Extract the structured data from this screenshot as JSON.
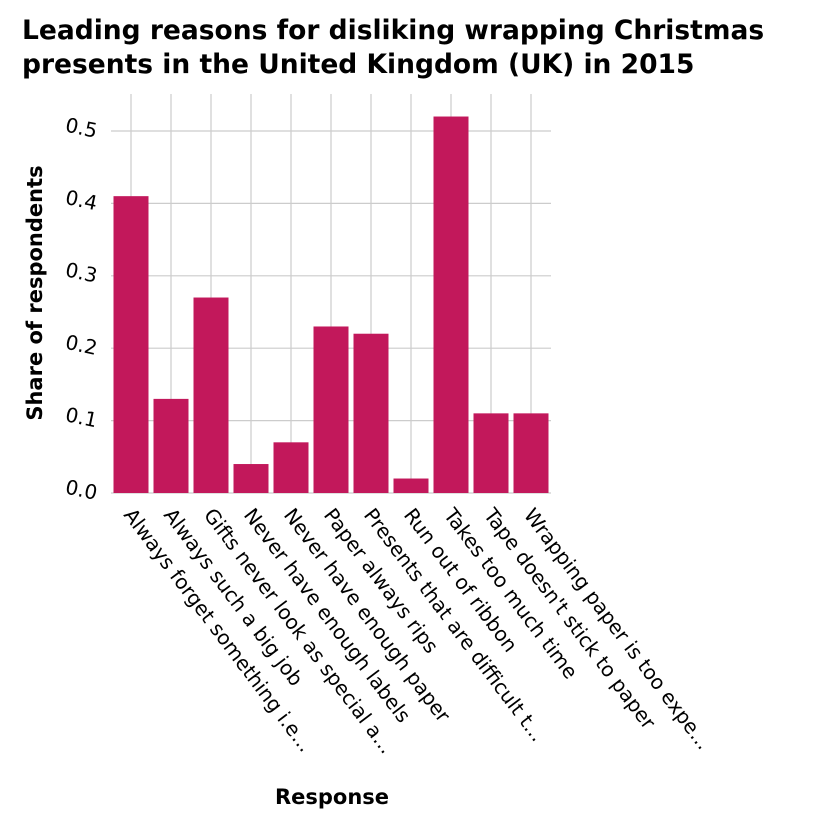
{
  "chart_data": {
    "type": "bar",
    "title": [
      "Leading reasons for disliking wrapping Christmas",
      "presents in the United Kingdom (UK) in 2015"
    ],
    "xlabel": "Response",
    "ylabel": "Share of respondents",
    "categories": [
      "Always forget something i.e...",
      "Always such a big job",
      "Gifts never look as special a...",
      "Never have enough labels",
      "Never have enough paper",
      "Paper always rips",
      "Presents that are difficult t...",
      "Run out of ribbon",
      "Takes too much time",
      "Tape doesn't stick to paper",
      "Wrapping paper is too expe..."
    ],
    "values": [
      0.41,
      0.13,
      0.27,
      0.04,
      0.07,
      0.23,
      0.22,
      0.02,
      0.52,
      0.11,
      0.11
    ],
    "yticks": [
      "0.0",
      "0.1",
      "0.2",
      "0.3",
      "0.4",
      "0.5"
    ],
    "ylim": [
      0,
      0.55
    ],
    "grid": true,
    "legend": "none",
    "colors": {
      "bar": "#C2185B",
      "grid": "#cccccc",
      "background": "#ffffff"
    }
  }
}
